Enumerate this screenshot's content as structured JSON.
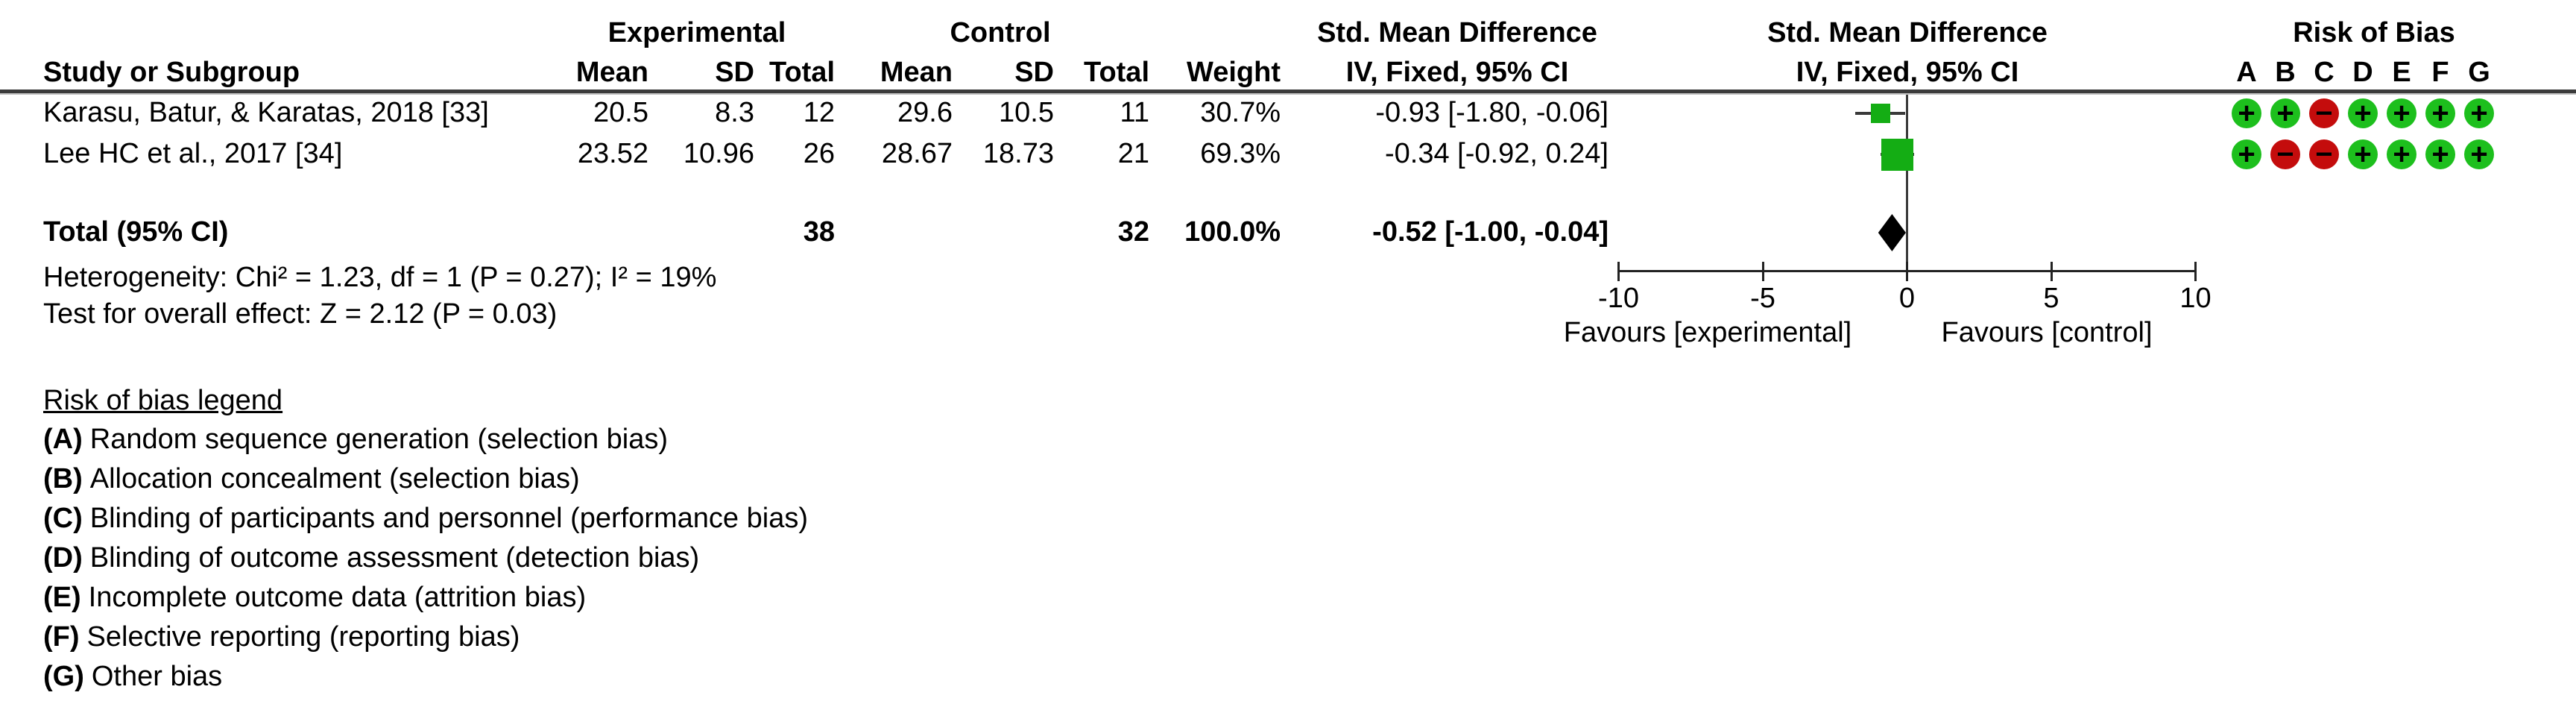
{
  "table": {
    "group_headers": {
      "experimental": "Experimental",
      "control": "Control",
      "smd_text_col": "Std. Mean Difference",
      "smd_plot_col": "Std. Mean Difference",
      "risk_of_bias": "Risk of Bias"
    },
    "col_headers": {
      "study": "Study or Subgroup",
      "exp_mean": "Mean",
      "exp_sd": "SD",
      "exp_total": "Total",
      "ctl_mean": "Mean",
      "ctl_sd": "SD",
      "ctl_total": "Total",
      "weight": "Weight",
      "ci_text_col": "IV, Fixed, 95% CI",
      "ci_plot_col": "IV, Fixed, 95% CI",
      "rob_letters": [
        "A",
        "B",
        "C",
        "D",
        "E",
        "F",
        "G"
      ]
    },
    "rows": [
      {
        "study": "Karasu, Batur, & Karatas, 2018 [33]",
        "exp_mean": "20.5",
        "exp_sd": "8.3",
        "exp_total": "12",
        "ctl_mean": "29.6",
        "ctl_sd": "10.5",
        "ctl_total": "11",
        "weight": "30.7%",
        "smd_ci": "-0.93 [-1.80, -0.06]",
        "rob": [
          "+",
          "+",
          "-",
          "+",
          "+",
          "+",
          "+"
        ]
      },
      {
        "study": "Lee HC et al., 2017 [34]",
        "exp_mean": "23.52",
        "exp_sd": "10.96",
        "exp_total": "26",
        "ctl_mean": "28.67",
        "ctl_sd": "18.73",
        "ctl_total": "21",
        "weight": "69.3%",
        "smd_ci": "-0.34 [-0.92, 0.24]",
        "rob": [
          "+",
          "-",
          "-",
          "+",
          "+",
          "+",
          "+"
        ]
      }
    ],
    "total_row": {
      "label": "Total (95% CI)",
      "exp_total": "38",
      "ctl_total": "32",
      "weight": "100.0%",
      "smd_ci": "-0.52 [-1.00, -0.04]"
    },
    "heterogeneity": "Heterogeneity: Chi² = 1.23, df = 1 (P = 0.27); I² = 19%",
    "overall_effect": "Test for overall effect: Z = 2.12 (P = 0.03)"
  },
  "chart_data": {
    "type": "forest",
    "effect_measure": "Std. Mean Difference, IV, Fixed, 95% CI",
    "axis": {
      "min": -10,
      "max": 10,
      "ticks": [
        -10,
        -5,
        0,
        5,
        10
      ]
    },
    "favours_left": "Favours [experimental]",
    "favours_right": "Favours [control]",
    "studies": [
      {
        "name": "Karasu, Batur, & Karatas, 2018 [33]",
        "smd": -0.93,
        "ci_low": -1.8,
        "ci_high": -0.06,
        "weight": 30.7
      },
      {
        "name": "Lee HC et al., 2017 [34]",
        "smd": -0.34,
        "ci_low": -0.92,
        "ci_high": 0.24,
        "weight": 69.3
      }
    ],
    "total": {
      "smd": -0.52,
      "ci_low": -1.0,
      "ci_high": -0.04
    }
  },
  "legend": {
    "title": "Risk of bias legend",
    "items": [
      {
        "label": "(A)",
        "text": "Random sequence generation (selection bias)"
      },
      {
        "label": "(B)",
        "text": "Allocation concealment (selection bias)"
      },
      {
        "label": "(C)",
        "text": "Blinding of participants and personnel (performance bias)"
      },
      {
        "label": "(D)",
        "text": "Blinding of outcome assessment (detection bias)"
      },
      {
        "label": "(E)",
        "text": "Incomplete outcome data (attrition bias)"
      },
      {
        "label": "(F)",
        "text": "Selective reporting (reporting bias)"
      },
      {
        "label": "(G)",
        "text": "Other bias"
      }
    ]
  },
  "colors": {
    "low_risk": "#1dbf1d",
    "high_risk": "#c40c0c",
    "marker": "#14ad14",
    "diamond": "#000000",
    "line": "#3a3a3a"
  }
}
